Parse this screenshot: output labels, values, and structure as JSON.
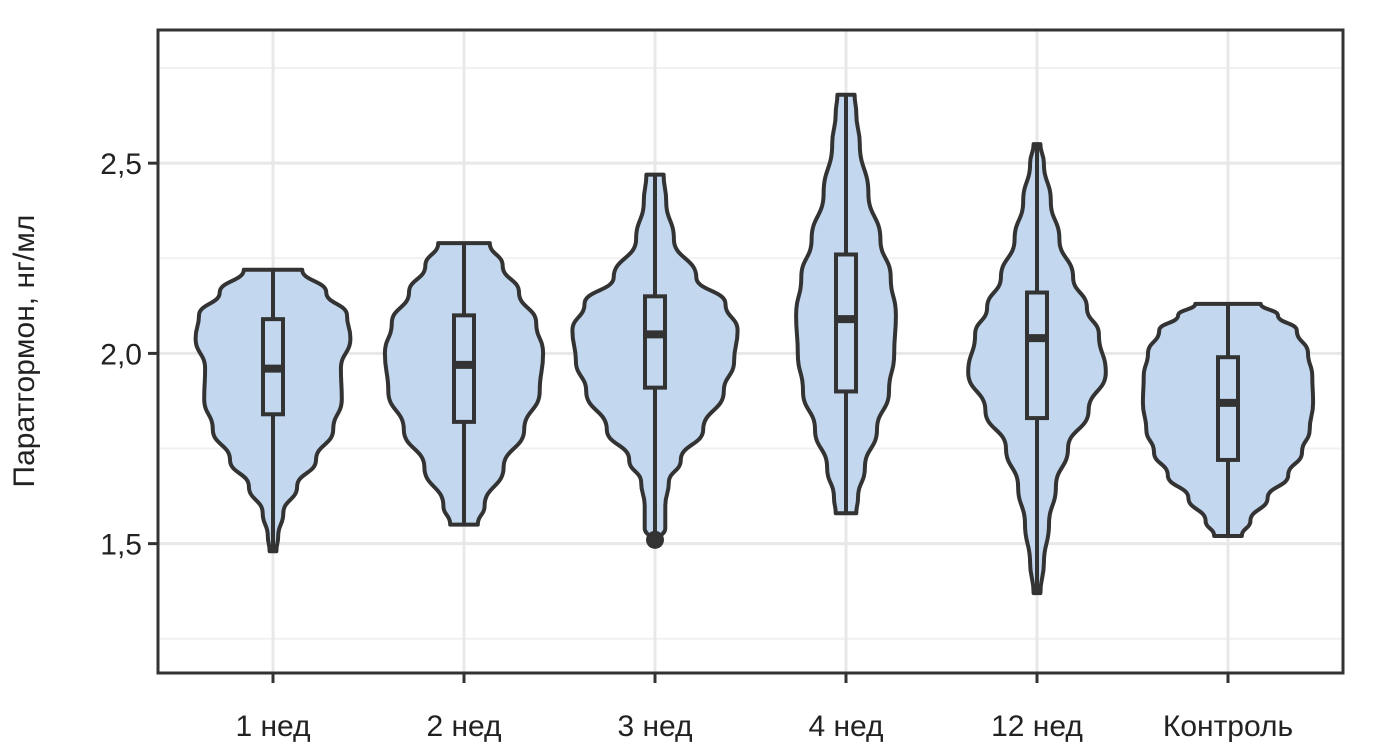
{
  "chart_data": {
    "type": "violin",
    "ylabel": "Паратгормон, нг/мл",
    "xlabel": "",
    "ylim": [
      1.16,
      2.85
    ],
    "y_ticks": [
      1.5,
      2.0,
      2.5
    ],
    "y_tick_labels": [
      "1,5",
      "2,0",
      "2,5"
    ],
    "y_minor_ticks": [
      1.25,
      1.75,
      2.25,
      2.75
    ],
    "grid": true,
    "colors": {
      "fill": "#c3d7ef",
      "stroke": "#333333"
    },
    "categories": [
      "1 нед",
      "2 нед",
      "3 нед",
      "4 нед",
      "12 нед",
      "Контроль"
    ],
    "groups": [
      {
        "label": "1 нед",
        "min": 1.48,
        "max": 2.22,
        "q1": 1.84,
        "median": 1.96,
        "q3": 2.09,
        "whisker_low": 1.48,
        "whisker_high": 2.22,
        "outliers": [],
        "density": [
          [
            1.48,
            0.04
          ],
          [
            1.52,
            0.06
          ],
          [
            1.58,
            0.12
          ],
          [
            1.65,
            0.28
          ],
          [
            1.72,
            0.5
          ],
          [
            1.8,
            0.7
          ],
          [
            1.88,
            0.8
          ],
          [
            1.96,
            0.79
          ],
          [
            2.04,
            0.9
          ],
          [
            2.1,
            0.86
          ],
          [
            2.16,
            0.62
          ],
          [
            2.22,
            0.34
          ]
        ]
      },
      {
        "label": "2 нед",
        "min": 1.55,
        "max": 2.29,
        "q1": 1.82,
        "median": 1.97,
        "q3": 2.1,
        "whisker_low": 1.55,
        "whisker_high": 2.29,
        "outliers": [],
        "density": [
          [
            1.55,
            0.16
          ],
          [
            1.6,
            0.24
          ],
          [
            1.7,
            0.46
          ],
          [
            1.8,
            0.7
          ],
          [
            1.9,
            0.88
          ],
          [
            2.0,
            0.92
          ],
          [
            2.08,
            0.84
          ],
          [
            2.16,
            0.64
          ],
          [
            2.23,
            0.45
          ],
          [
            2.29,
            0.3
          ]
        ]
      },
      {
        "label": "3 нед",
        "min": 1.51,
        "max": 2.47,
        "q1": 1.91,
        "median": 2.05,
        "q3": 2.15,
        "whisker_low": 1.51,
        "whisker_high": 2.47,
        "outliers": [
          1.51
        ],
        "density": [
          [
            1.51,
            0.05
          ],
          [
            1.54,
            0.12
          ],
          [
            1.6,
            0.12
          ],
          [
            1.66,
            0.16
          ],
          [
            1.72,
            0.3
          ],
          [
            1.8,
            0.56
          ],
          [
            1.9,
            0.8
          ],
          [
            1.98,
            0.92
          ],
          [
            2.06,
            0.96
          ],
          [
            2.13,
            0.82
          ],
          [
            2.2,
            0.48
          ],
          [
            2.3,
            0.22
          ],
          [
            2.4,
            0.13
          ],
          [
            2.47,
            0.1
          ]
        ]
      },
      {
        "label": "4 нед",
        "min": 1.58,
        "max": 2.68,
        "q1": 1.9,
        "median": 2.09,
        "q3": 2.26,
        "whisker_low": 1.58,
        "whisker_high": 2.68,
        "outliers": [],
        "density": [
          [
            1.58,
            0.12
          ],
          [
            1.62,
            0.14
          ],
          [
            1.7,
            0.22
          ],
          [
            1.8,
            0.36
          ],
          [
            1.9,
            0.5
          ],
          [
            2.0,
            0.56
          ],
          [
            2.1,
            0.58
          ],
          [
            2.2,
            0.52
          ],
          [
            2.3,
            0.4
          ],
          [
            2.42,
            0.26
          ],
          [
            2.55,
            0.16
          ],
          [
            2.63,
            0.12
          ],
          [
            2.68,
            0.1
          ]
        ]
      },
      {
        "label": "12 нед",
        "min": 1.37,
        "max": 2.55,
        "q1": 1.83,
        "median": 2.04,
        "q3": 2.16,
        "whisker_low": 1.37,
        "whisker_high": 2.55,
        "outliers": [],
        "density": [
          [
            1.37,
            0.04
          ],
          [
            1.45,
            0.08
          ],
          [
            1.55,
            0.14
          ],
          [
            1.65,
            0.22
          ],
          [
            1.75,
            0.36
          ],
          [
            1.85,
            0.6
          ],
          [
            1.95,
            0.8
          ],
          [
            2.05,
            0.72
          ],
          [
            2.12,
            0.58
          ],
          [
            2.2,
            0.42
          ],
          [
            2.3,
            0.26
          ],
          [
            2.4,
            0.16
          ],
          [
            2.5,
            0.08
          ],
          [
            2.55,
            0.04
          ]
        ]
      },
      {
        "label": "Контроль",
        "min": 1.52,
        "max": 2.13,
        "q1": 1.72,
        "median": 1.87,
        "q3": 1.99,
        "whisker_low": 1.52,
        "whisker_high": 2.13,
        "outliers": [],
        "density": [
          [
            1.52,
            0.16
          ],
          [
            1.56,
            0.26
          ],
          [
            1.62,
            0.46
          ],
          [
            1.68,
            0.7
          ],
          [
            1.74,
            0.86
          ],
          [
            1.8,
            0.95
          ],
          [
            1.87,
            0.99
          ],
          [
            1.94,
            0.98
          ],
          [
            2.0,
            0.93
          ],
          [
            2.06,
            0.8
          ],
          [
            2.1,
            0.58
          ],
          [
            2.13,
            0.38
          ]
        ]
      }
    ]
  }
}
